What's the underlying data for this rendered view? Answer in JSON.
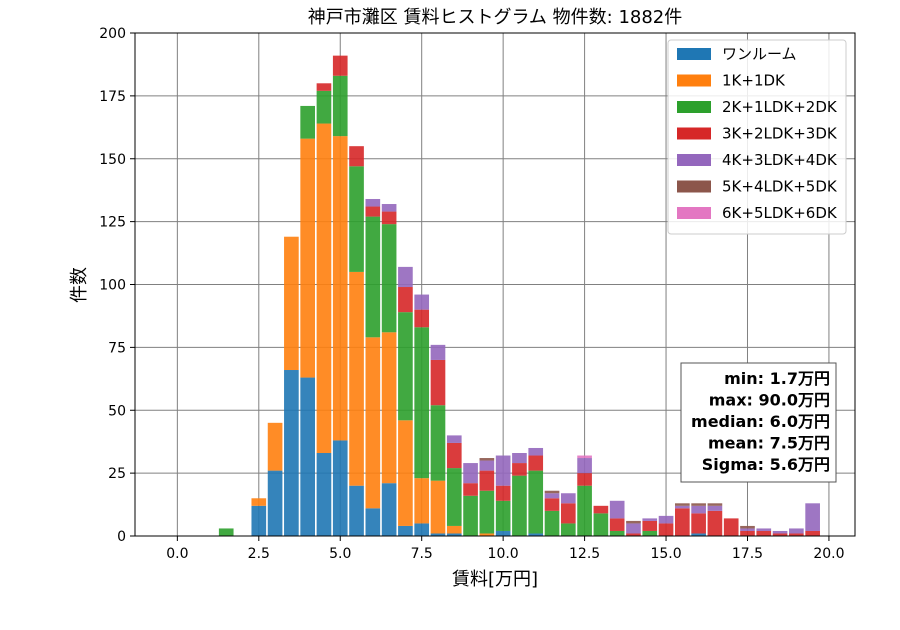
{
  "chart_data": {
    "type": "bar",
    "stacked": true,
    "title": "神戸市灘区 賃料ヒストグラム  物件数: 1882件",
    "xlabel": "賃料[万円]",
    "ylabel": "件数",
    "xlim": [
      -1.3,
      20.8
    ],
    "ylim": [
      0,
      200
    ],
    "xticks": [
      0,
      2.5,
      5,
      7.5,
      10,
      12.5,
      15,
      17.5,
      20
    ],
    "xtick_labels": [
      "0.0",
      "2.5",
      "5.0",
      "7.5",
      "10.0",
      "12.5",
      "15.0",
      "17.5",
      "20.0"
    ],
    "yticks": [
      0,
      25,
      50,
      75,
      100,
      125,
      150,
      175,
      200
    ],
    "ytick_labels": [
      "0",
      "25",
      "50",
      "75",
      "100",
      "125",
      "150",
      "175",
      "200"
    ],
    "grid": true,
    "legend_position": "top-right",
    "bin_width": 0.5,
    "x": [
      1.5,
      2.5,
      3.0,
      3.5,
      4.0,
      4.5,
      5.0,
      5.5,
      6.0,
      6.5,
      7.0,
      7.5,
      8.0,
      8.5,
      9.0,
      9.5,
      10.0,
      10.5,
      11.0,
      11.5,
      12.0,
      12.5,
      13.0,
      13.5,
      14.0,
      14.5,
      15.0,
      15.5,
      16.0,
      16.5,
      17.0,
      17.5,
      18.0,
      18.5,
      19.0,
      19.5
    ],
    "series": [
      {
        "name": "ワンルーム",
        "color": "#1f77b4",
        "values": [
          0,
          12,
          26,
          66,
          63,
          33,
          38,
          20,
          11,
          21,
          4,
          5,
          1,
          1,
          0,
          0,
          2,
          0,
          1,
          0,
          0,
          0,
          0,
          0,
          0,
          0,
          0,
          0,
          1,
          0,
          0,
          0,
          0,
          0,
          0,
          0
        ]
      },
      {
        "name": "1K+1DK",
        "color": "#ff7f0e",
        "values": [
          0,
          3,
          19,
          53,
          95,
          131,
          121,
          85,
          68,
          60,
          42,
          18,
          21,
          3,
          0,
          1,
          0,
          0,
          0,
          0,
          0,
          0,
          0,
          0,
          0,
          0,
          0,
          0,
          0,
          0,
          0,
          0,
          0,
          0,
          0,
          0
        ]
      },
      {
        "name": "2K+1LDK+2DK",
        "color": "#2ca02c",
        "values": [
          3,
          0,
          0,
          0,
          13,
          13,
          24,
          42,
          48,
          43,
          43,
          60,
          30,
          23,
          16,
          17,
          12,
          24,
          25,
          10,
          5,
          20,
          9,
          2,
          0,
          2,
          0,
          0,
          0,
          0,
          0,
          0,
          0,
          0,
          0,
          0
        ]
      },
      {
        "name": "3K+2LDK+3DK",
        "color": "#d62728",
        "values": [
          0,
          0,
          0,
          0,
          0,
          3,
          8,
          8,
          4,
          5,
          10,
          7,
          18,
          10,
          5,
          8,
          6,
          5,
          6,
          5,
          8,
          5,
          3,
          5,
          1,
          4,
          5,
          11,
          8,
          10,
          7,
          2,
          2,
          1,
          1,
          2
        ]
      },
      {
        "name": "4K+3LDK+4DK",
        "color": "#9467bd",
        "values": [
          0,
          0,
          0,
          0,
          0,
          0,
          0,
          0,
          3,
          3,
          8,
          6,
          6,
          3,
          8,
          4,
          12,
          4,
          3,
          2,
          4,
          6,
          0,
          7,
          4,
          1,
          3,
          1,
          3,
          2,
          0,
          1,
          1,
          1,
          2,
          11
        ]
      },
      {
        "name": "5K+4LDK+5DK",
        "color": "#8c564b",
        "values": [
          0,
          0,
          0,
          0,
          0,
          0,
          0,
          0,
          0,
          0,
          0,
          0,
          0,
          0,
          0,
          1,
          0,
          0,
          0,
          1,
          0,
          0,
          0,
          0,
          1,
          0,
          0,
          1,
          1,
          1,
          0,
          1,
          0,
          0,
          0,
          0
        ]
      },
      {
        "name": "6K+5LDK+6DK",
        "color": "#e377c2",
        "values": [
          0,
          0,
          0,
          0,
          0,
          0,
          0,
          0,
          0,
          0,
          0,
          0,
          0,
          0,
          0,
          0,
          0,
          0,
          0,
          0,
          0,
          1,
          0,
          0,
          0,
          0,
          0,
          0,
          0,
          0,
          0,
          0,
          0,
          0,
          0,
          0
        ]
      }
    ],
    "stats_box": {
      "lines": [
        "min: 1.7万円",
        "max: 90.0万円",
        "median: 6.0万円",
        "mean: 7.5万円",
        "Sigma: 5.6万円"
      ]
    }
  }
}
